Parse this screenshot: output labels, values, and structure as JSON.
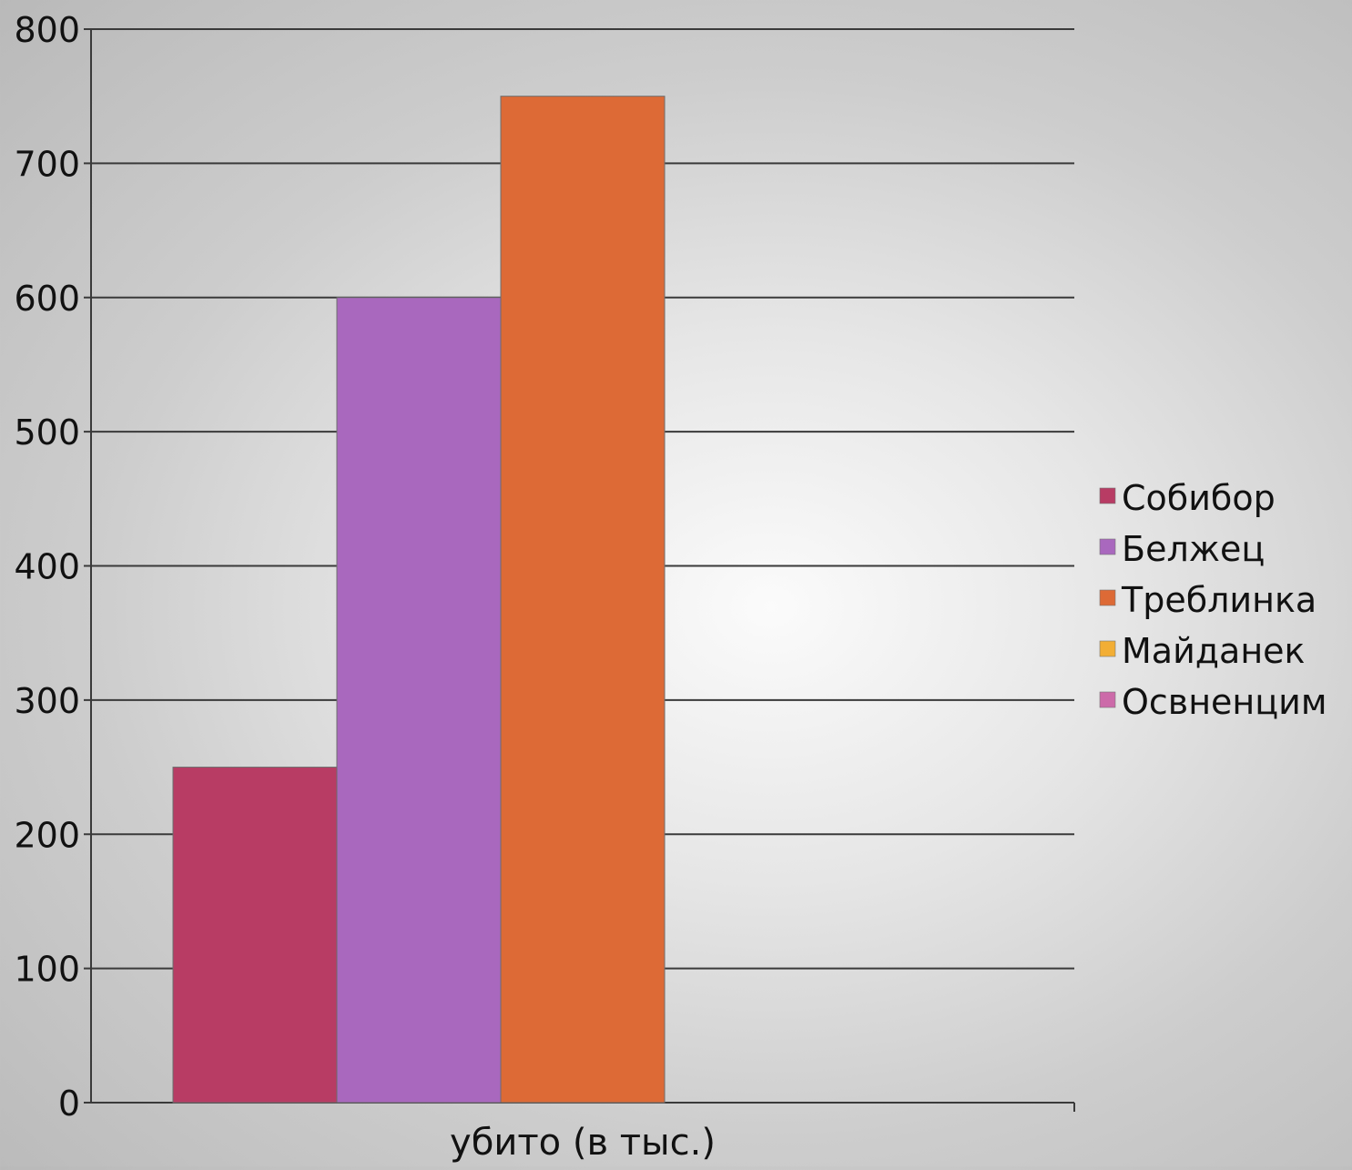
{
  "chart_data": {
    "type": "bar",
    "title": "",
    "xlabel": "",
    "ylabel": "",
    "categories": [
      "убито (в тыс.)"
    ],
    "ylim": [
      0,
      800
    ],
    "yticks": [
      "0",
      "100",
      "200",
      "300",
      "400",
      "500",
      "600",
      "700",
      "800"
    ],
    "grid": true,
    "legend_position": "right",
    "series": [
      {
        "name": "Собибор",
        "values": [
          250
        ],
        "color": "#b83c64"
      },
      {
        "name": "Белжец",
        "values": [
          600
        ],
        "color": "#a968be"
      },
      {
        "name": "Треблинка",
        "values": [
          750
        ],
        "color": "#dd6a36"
      },
      {
        "name": "Майданек",
        "values": [
          0
        ],
        "color": "#f2ae35"
      },
      {
        "name": "Освненцим",
        "values": [
          0
        ],
        "color": "#cc6aa9"
      }
    ]
  }
}
